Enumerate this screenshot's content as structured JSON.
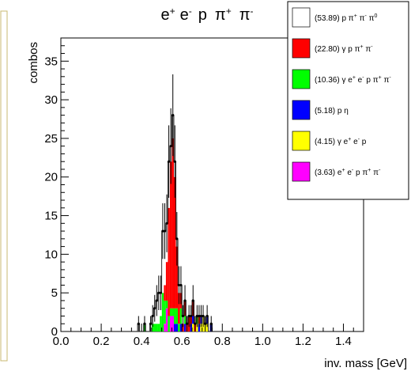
{
  "colors": {
    "frame": "#c8b870",
    "background": "#ffffff",
    "axis": "#000000"
  },
  "chart_data": {
    "type": "bar",
    "stacked": true,
    "histogram": true,
    "title": "e⁺ e⁻ p π⁺ π⁻",
    "title_parts": [
      "e",
      "+",
      "e",
      "-",
      "p",
      "π",
      "+",
      "π",
      "-"
    ],
    "xlabel": "inv. mass [GeV]",
    "ylabel": "combos",
    "xlim": [
      0.0,
      1.5
    ],
    "ylim": [
      0,
      38
    ],
    "xticks": [
      "0.0",
      "0.2",
      "0.4",
      "0.6",
      "0.8",
      "1.0",
      "1.2",
      "1.4"
    ],
    "yticks": [
      "0",
      "5",
      "10",
      "15",
      "20",
      "25",
      "30",
      "35"
    ],
    "bin_width": 0.01,
    "legend_position": "top-right",
    "bins": [
      0.37,
      0.38,
      0.39,
      0.4,
      0.41,
      0.42,
      0.43,
      0.44,
      0.45,
      0.46,
      0.47,
      0.48,
      0.49,
      0.5,
      0.51,
      0.52,
      0.53,
      0.54,
      0.55,
      0.56,
      0.57,
      0.58,
      0.59,
      0.6,
      0.61,
      0.62,
      0.63,
      0.64,
      0.65,
      0.66,
      0.67,
      0.68,
      0.69,
      0.7,
      0.71,
      0.72,
      0.73,
      0.74,
      0.75,
      0.76
    ],
    "series": [
      {
        "name": "(3.63) e⁺ e⁻ p π⁺ π⁻",
        "label_parts": [
          "(3.63) e",
          "+",
          " e",
          "-",
          " p π",
          "+",
          " π",
          "-"
        ],
        "color": "#ff00ff",
        "values": [
          0,
          0,
          0,
          0,
          0,
          0,
          0,
          0,
          0,
          0,
          0,
          0,
          0,
          0,
          1,
          3,
          0,
          2,
          2,
          0,
          0,
          0,
          0,
          0,
          0,
          0,
          0,
          0,
          0,
          0,
          0,
          0,
          0,
          0,
          0,
          0,
          0,
          0,
          0,
          0
        ]
      },
      {
        "name": "(4.15) γ e⁺ e⁻ p",
        "label_parts": [
          "(4.15) γ e",
          "+",
          " e",
          "-",
          " p",
          "",
          "",
          "",
          "",
          ""
        ],
        "color": "#ffff00",
        "values": [
          0,
          0,
          0,
          0,
          0,
          0,
          0,
          0,
          0,
          0,
          0,
          0,
          0,
          0,
          0,
          0,
          0,
          0,
          0,
          0,
          0,
          0,
          0,
          0,
          0,
          0,
          0,
          0,
          1,
          0,
          1,
          0,
          1,
          2,
          1,
          1,
          0,
          0,
          0,
          0
        ]
      },
      {
        "name": "(5.18) p η",
        "label_parts": [
          "(5.18) p η",
          "",
          "",
          "",
          "",
          "",
          "",
          "",
          "",
          ""
        ],
        "color": "#0000ff",
        "values": [
          0,
          0,
          0,
          0,
          0,
          0,
          0,
          0,
          0,
          0,
          0,
          0,
          0,
          0,
          0,
          0,
          0,
          0,
          0,
          1,
          1,
          0,
          1,
          0,
          1,
          0,
          0,
          1,
          1,
          0,
          0,
          1,
          1,
          0,
          0,
          1,
          0,
          1,
          0,
          0
        ]
      },
      {
        "name": "(10.36) γ e⁺ e⁻ p π⁺ π⁻",
        "label_parts": [
          "(10.36) γ e",
          "+",
          " e",
          "-",
          " p π",
          "+",
          " π",
          "-"
        ],
        "color": "#00ff00",
        "values": [
          0,
          0,
          0,
          0,
          1,
          0,
          0,
          0,
          1,
          1,
          1,
          1,
          2,
          5,
          3,
          1,
          2,
          1,
          1,
          2,
          2,
          1,
          2,
          0,
          1,
          0,
          0,
          0,
          0,
          0,
          1,
          0,
          0,
          0,
          0,
          0,
          0,
          0,
          0,
          0
        ]
      },
      {
        "name": "(22.80) γ p π⁺ π⁻",
        "label_parts": [
          "(22.80) γ p π",
          "+",
          " π",
          "-",
          "",
          "",
          "",
          "",
          "",
          ""
        ],
        "color": "#ff0000",
        "values": [
          0,
          0,
          0,
          0,
          0,
          0,
          0,
          0,
          0,
          0,
          0,
          0,
          0,
          0,
          2,
          5,
          14,
          19,
          22,
          17,
          8,
          4,
          2,
          1,
          2,
          1,
          2,
          1,
          2,
          1,
          0,
          1,
          0,
          0,
          0,
          0,
          0,
          0,
          0,
          0
        ]
      },
      {
        "name": "(53.89) p π⁺ π⁻ π⁰",
        "label_parts": [
          "(53.89) p π",
          "+",
          " π",
          "-",
          " π",
          "0",
          "",
          "",
          "",
          ""
        ],
        "color": "#ffffff",
        "values": [
          0,
          1,
          0,
          0,
          0,
          0,
          0,
          1,
          1,
          2,
          3,
          4,
          3,
          8,
          7,
          5,
          6,
          2,
          3,
          2,
          1,
          1,
          1,
          1,
          0,
          0,
          0,
          0,
          0,
          0,
          0,
          0,
          0,
          0,
          0,
          0,
          0,
          0,
          0,
          0
        ]
      }
    ],
    "totals": [
      0,
      1,
      0,
      0,
      1,
      0,
      0,
      1,
      2,
      3,
      4,
      5,
      5,
      13,
      13,
      14,
      22,
      24,
      28,
      22,
      12,
      6,
      6,
      2,
      4,
      1,
      2,
      2,
      4,
      1,
      2,
      2,
      2,
      2,
      1,
      2,
      0,
      1,
      0,
      0
    ]
  }
}
